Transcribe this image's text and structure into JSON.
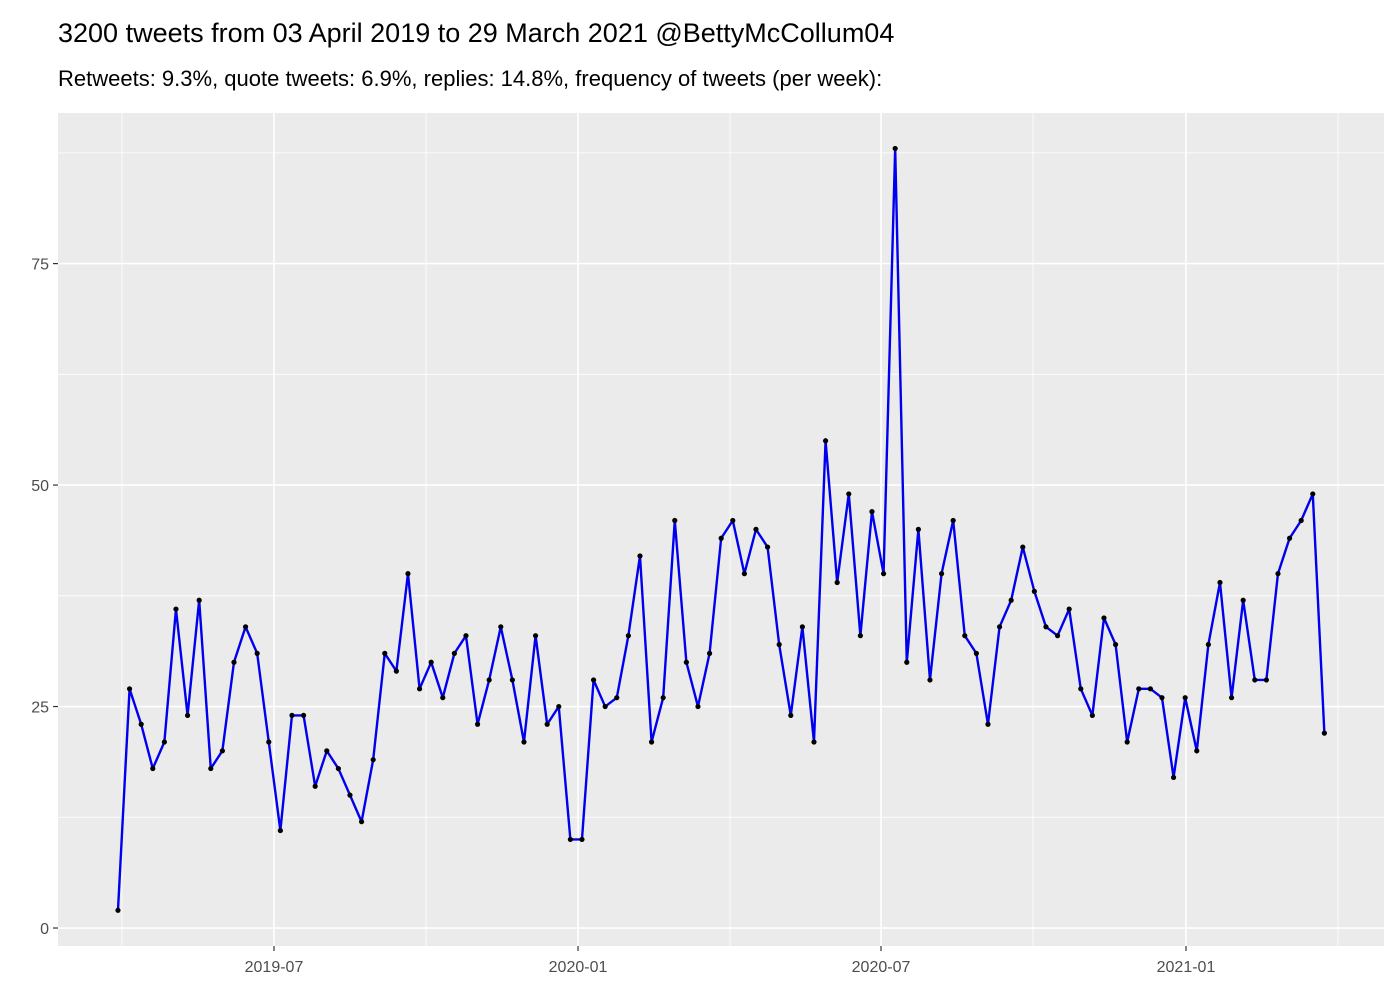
{
  "chart_data": {
    "type": "line",
    "title": "3200 tweets from 03 April 2019 to 29 March 2021 @BettyMcCollum04",
    "subtitle": "Retweets: 9.3%, quote tweets: 6.9%, replies: 14.8%, frequency of tweets (per week):",
    "series": [
      {
        "color": "#0000ee",
        "point_color": "#000000",
        "values": [
          2,
          27,
          23,
          18,
          21,
          36,
          24,
          37,
          18,
          20,
          30,
          34,
          31,
          21,
          11,
          24,
          24,
          16,
          20,
          18,
          15,
          12,
          19,
          31,
          29,
          40,
          27,
          30,
          26,
          31,
          33,
          23,
          28,
          34,
          28,
          21,
          33,
          23,
          25,
          10,
          10,
          28,
          25,
          26,
          33,
          42,
          21,
          26,
          46,
          30,
          25,
          31,
          44,
          46,
          40,
          45,
          43,
          32,
          24,
          34,
          21,
          55,
          39,
          49,
          33,
          47,
          40,
          88,
          30,
          45,
          28,
          40,
          46,
          33,
          31,
          23,
          34,
          37,
          43,
          38,
          34,
          33,
          36,
          27,
          24,
          35,
          32,
          21,
          27,
          27,
          26,
          17,
          26,
          20,
          32,
          39,
          26,
          37,
          28,
          28,
          40,
          44,
          46,
          49,
          22
        ]
      }
    ],
    "xlim": [
      -5.17,
      109.14
    ],
    "xticks": [
      {
        "value": 13.45,
        "label": "2019-07"
      },
      {
        "value": 39.66,
        "label": "2020-01"
      },
      {
        "value": 65.78,
        "label": "2020-07"
      },
      {
        "value": 92.07,
        "label": "2021-01"
      }
    ],
    "ylim": [
      -2.03,
      92
    ],
    "yticks": [
      0,
      25,
      50,
      75
    ],
    "grid": true
  }
}
